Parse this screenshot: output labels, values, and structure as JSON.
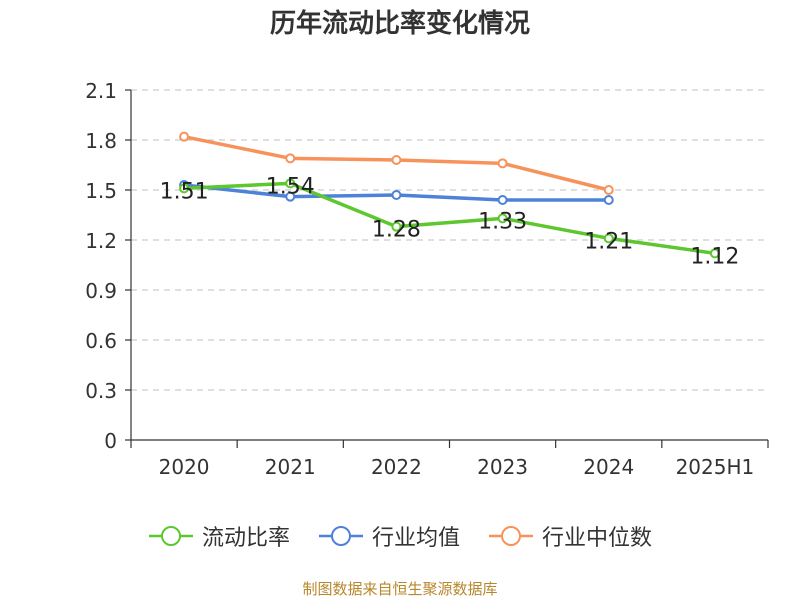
{
  "chart_data": {
    "type": "line",
    "title": "历年流动比率变化情况",
    "categories": [
      "2020",
      "2021",
      "2022",
      "2023",
      "2024",
      "2025H1"
    ],
    "yticks": [
      "0",
      "0.3",
      "0.6",
      "0.9",
      "1.2",
      "1.5",
      "1.8",
      "2.1"
    ],
    "ylim": [
      0,
      2.1
    ],
    "grid": true,
    "legend_position": "bottom",
    "series": [
      {
        "name": "流动比率",
        "color": "#5cc72f",
        "values": [
          1.51,
          1.54,
          1.28,
          1.33,
          1.21,
          1.12
        ],
        "labels": [
          "1.51",
          "1.54",
          "1.28",
          "1.33",
          "1.21",
          "1.12"
        ]
      },
      {
        "name": "行业均值",
        "color": "#4e82d8",
        "values": [
          1.53,
          1.46,
          1.47,
          1.44,
          1.44,
          null
        ]
      },
      {
        "name": "行业中位数",
        "color": "#f7925a",
        "values": [
          1.82,
          1.69,
          1.68,
          1.66,
          1.5,
          null
        ]
      }
    ]
  },
  "source": "制图数据来自恒生聚源数据库"
}
